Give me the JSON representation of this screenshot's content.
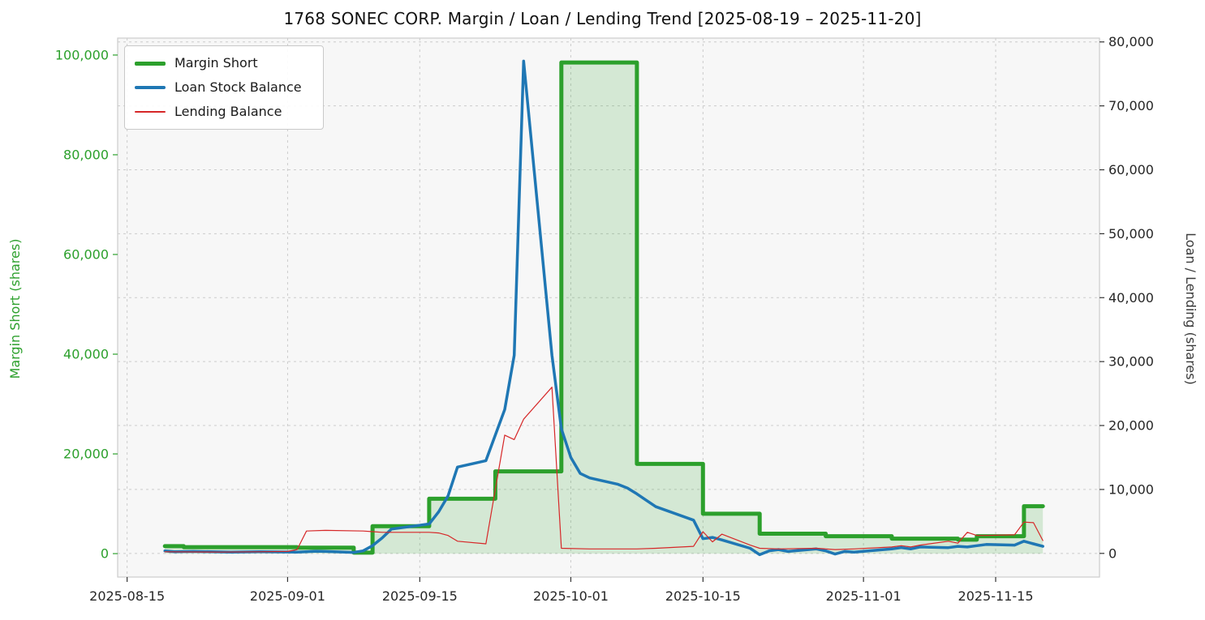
{
  "chart_data": {
    "type": "line",
    "title": "1768 SONEC CORP. Margin / Loan / Lending Trend [2025-08-19 – 2025-11-20]",
    "ylabel_left": "Margin Short (shares)",
    "ylabel_right": "Loan / Lending (shares)",
    "legend_position": "top-left",
    "grid": true,
    "plot_background": "#f7f7f7",
    "grid_color": "#cccccc",
    "spine_color": "#cccccc",
    "left_axis_color": "#2ca02c",
    "right_axis_color": "#333333",
    "xlim": [
      "2025-08-14",
      "2025-11-26"
    ],
    "ylim_left": [
      -4700,
      103400
    ],
    "ylim_right": [
      -3700,
      80600
    ],
    "x_ticks": [
      {
        "value": "2025-08-15",
        "label": "2025-08-15"
      },
      {
        "value": "2025-09-01",
        "label": "2025-09-01"
      },
      {
        "value": "2025-09-15",
        "label": "2025-09-15"
      },
      {
        "value": "2025-10-01",
        "label": "2025-10-01"
      },
      {
        "value": "2025-10-15",
        "label": "2025-10-15"
      },
      {
        "value": "2025-11-01",
        "label": "2025-11-01"
      },
      {
        "value": "2025-11-15",
        "label": "2025-11-15"
      }
    ],
    "y_ticks_left": [
      {
        "value": 0,
        "label": "0"
      },
      {
        "value": 20000,
        "label": "20,000"
      },
      {
        "value": 40000,
        "label": "40,000"
      },
      {
        "value": 60000,
        "label": "60,000"
      },
      {
        "value": 80000,
        "label": "80,000"
      },
      {
        "value": 100000,
        "label": "100,000"
      }
    ],
    "y_ticks_right": [
      {
        "value": 0,
        "label": "0"
      },
      {
        "value": 10000,
        "label": "10,000"
      },
      {
        "value": 20000,
        "label": "20,000"
      },
      {
        "value": 30000,
        "label": "30,000"
      },
      {
        "value": 40000,
        "label": "40,000"
      },
      {
        "value": 50000,
        "label": "50,000"
      },
      {
        "value": 60000,
        "label": "60,000"
      },
      {
        "value": 70000,
        "label": "70,000"
      },
      {
        "value": 80000,
        "label": "80,000"
      }
    ],
    "series": [
      {
        "name": "Margin Short",
        "axis": "left",
        "color": "#2ca02c",
        "fill_color": "rgba(44,160,44,0.17)",
        "width": 5,
        "style": "step",
        "fill": true,
        "points": [
          [
            "2025-08-19",
            1500
          ],
          [
            "2025-08-21",
            1300
          ],
          [
            "2025-08-28",
            1300
          ],
          [
            "2025-09-02",
            1200
          ],
          [
            "2025-09-05",
            1200
          ],
          [
            "2025-09-08",
            200
          ],
          [
            "2025-09-10",
            5500
          ],
          [
            "2025-09-16",
            11000
          ],
          [
            "2025-09-23",
            16500
          ],
          [
            "2025-09-30",
            98500
          ],
          [
            "2025-10-08",
            18000
          ],
          [
            "2025-10-15",
            8000
          ],
          [
            "2025-10-21",
            4000
          ],
          [
            "2025-10-28",
            3500
          ],
          [
            "2025-11-04",
            3000
          ],
          [
            "2025-11-11",
            2800
          ],
          [
            "2025-11-13",
            3500
          ],
          [
            "2025-11-18",
            9500
          ],
          [
            "2025-11-20",
            9500
          ]
        ]
      },
      {
        "name": "Loan Stock Balance",
        "axis": "right",
        "color": "#1f77b4",
        "width": 3.5,
        "style": "line",
        "fill": false,
        "points": [
          [
            "2025-08-19",
            400
          ],
          [
            "2025-08-20",
            250
          ],
          [
            "2025-08-22",
            300
          ],
          [
            "2025-08-26",
            200
          ],
          [
            "2025-08-29",
            250
          ],
          [
            "2025-09-02",
            200
          ],
          [
            "2025-09-04",
            350
          ],
          [
            "2025-09-05",
            300
          ],
          [
            "2025-09-08",
            150
          ],
          [
            "2025-09-09",
            400
          ],
          [
            "2025-09-10",
            1200
          ],
          [
            "2025-09-11",
            2400
          ],
          [
            "2025-09-12",
            3800
          ],
          [
            "2025-09-16",
            4600
          ],
          [
            "2025-09-17",
            6500
          ],
          [
            "2025-09-18",
            9000
          ],
          [
            "2025-09-19",
            13500
          ],
          [
            "2025-09-22",
            14500
          ],
          [
            "2025-09-24",
            22500
          ],
          [
            "2025-09-25",
            31000
          ],
          [
            "2025-09-26",
            77000
          ],
          [
            "2025-09-29",
            31000
          ],
          [
            "2025-09-30",
            19500
          ],
          [
            "2025-10-01",
            15000
          ],
          [
            "2025-10-02",
            12500
          ],
          [
            "2025-10-03",
            11800
          ],
          [
            "2025-10-06",
            10800
          ],
          [
            "2025-10-07",
            10200
          ],
          [
            "2025-10-08",
            9300
          ],
          [
            "2025-10-09",
            8300
          ],
          [
            "2025-10-10",
            7300
          ],
          [
            "2025-10-14",
            5200
          ],
          [
            "2025-10-15",
            2300
          ],
          [
            "2025-10-16",
            2500
          ],
          [
            "2025-10-17",
            2100
          ],
          [
            "2025-10-20",
            800
          ],
          [
            "2025-10-21",
            -200
          ],
          [
            "2025-10-22",
            400
          ],
          [
            "2025-10-23",
            600
          ],
          [
            "2025-10-24",
            300
          ],
          [
            "2025-10-27",
            700
          ],
          [
            "2025-10-28",
            400
          ],
          [
            "2025-10-29",
            -100
          ],
          [
            "2025-10-30",
            300
          ],
          [
            "2025-10-31",
            200
          ],
          [
            "2025-11-04",
            700
          ],
          [
            "2025-11-05",
            900
          ],
          [
            "2025-11-06",
            700
          ],
          [
            "2025-11-07",
            1000
          ],
          [
            "2025-11-10",
            900
          ],
          [
            "2025-11-11",
            1100
          ],
          [
            "2025-11-12",
            1000
          ],
          [
            "2025-11-13",
            1200
          ],
          [
            "2025-11-14",
            1400
          ],
          [
            "2025-11-17",
            1300
          ],
          [
            "2025-11-18",
            1900
          ],
          [
            "2025-11-19",
            1500
          ],
          [
            "2025-11-20",
            1100
          ]
        ]
      },
      {
        "name": "Lending Balance",
        "axis": "right",
        "color": "#d62728",
        "width": 1.2,
        "style": "line",
        "fill": false,
        "points": [
          [
            "2025-08-19",
            250
          ],
          [
            "2025-08-25",
            200
          ],
          [
            "2025-08-29",
            250
          ],
          [
            "2025-09-01",
            300
          ],
          [
            "2025-09-02",
            600
          ],
          [
            "2025-09-03",
            3500
          ],
          [
            "2025-09-05",
            3600
          ],
          [
            "2025-09-09",
            3500
          ],
          [
            "2025-09-10",
            3400
          ],
          [
            "2025-09-11",
            3300
          ],
          [
            "2025-09-16",
            3300
          ],
          [
            "2025-09-17",
            3200
          ],
          [
            "2025-09-18",
            2800
          ],
          [
            "2025-09-19",
            1900
          ],
          [
            "2025-09-22",
            1500
          ],
          [
            "2025-09-24",
            18500
          ],
          [
            "2025-09-25",
            17800
          ],
          [
            "2025-09-26",
            21000
          ],
          [
            "2025-09-29",
            26000
          ],
          [
            "2025-09-30",
            800
          ],
          [
            "2025-10-03",
            700
          ],
          [
            "2025-10-08",
            700
          ],
          [
            "2025-10-10",
            800
          ],
          [
            "2025-10-14",
            1100
          ],
          [
            "2025-10-15",
            3400
          ],
          [
            "2025-10-16",
            1800
          ],
          [
            "2025-10-17",
            3000
          ],
          [
            "2025-10-20",
            1300
          ],
          [
            "2025-10-21",
            800
          ],
          [
            "2025-10-23",
            700
          ],
          [
            "2025-10-27",
            800
          ],
          [
            "2025-10-29",
            600
          ],
          [
            "2025-10-31",
            700
          ],
          [
            "2025-11-04",
            1000
          ],
          [
            "2025-11-05",
            1200
          ],
          [
            "2025-11-06",
            1000
          ],
          [
            "2025-11-07",
            1300
          ],
          [
            "2025-11-10",
            1900
          ],
          [
            "2025-11-11",
            1600
          ],
          [
            "2025-11-12",
            3300
          ],
          [
            "2025-11-13",
            2800
          ],
          [
            "2025-11-14",
            2800
          ],
          [
            "2025-11-17",
            2900
          ],
          [
            "2025-11-18",
            4900
          ],
          [
            "2025-11-19",
            4800
          ],
          [
            "2025-11-20",
            2000
          ]
        ]
      }
    ]
  }
}
